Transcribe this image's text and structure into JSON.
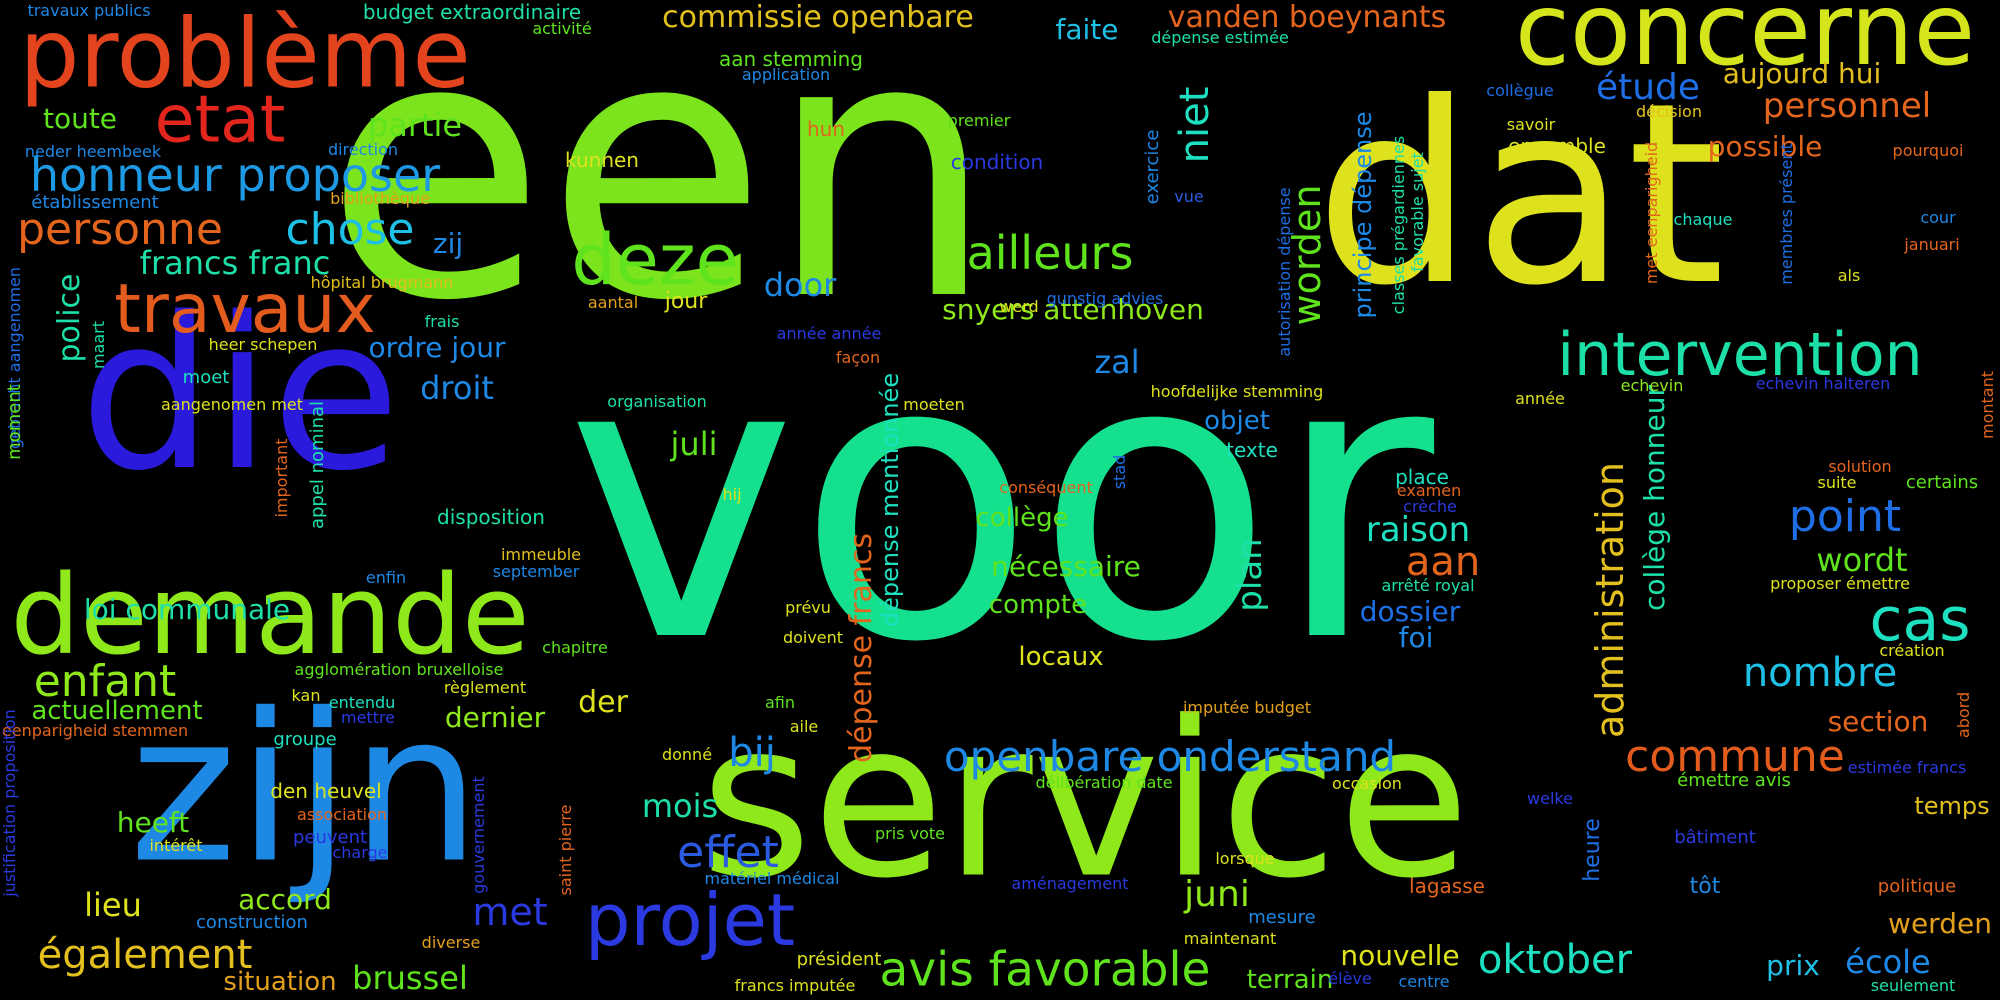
{
  "words": [
    {
      "text": "een",
      "color": "#7be41c"
    },
    {
      "text": "voor",
      "color": "#14e08e"
    },
    {
      "text": "service",
      "color": "#8ee81a"
    },
    {
      "text": "dat",
      "color": "#dde21c"
    },
    {
      "text": "die",
      "color": "#2a1bdc"
    },
    {
      "text": "zijn",
      "color": "#1e88e5"
    },
    {
      "text": "concerne",
      "color": "#d4e51c"
    },
    {
      "text": "demande",
      "color": "#8ee81a"
    },
    {
      "text": "problème",
      "color": "#e3431d"
    },
    {
      "text": "intervention",
      "color": "#1de0a8"
    },
    {
      "text": "travaux",
      "color": "#e35b1d"
    },
    {
      "text": "projet",
      "color": "#2a3ae0"
    },
    {
      "text": "deze",
      "color": "#5ee31c"
    },
    {
      "text": "etat",
      "color": "#e3261d"
    },
    {
      "text": "honneur proposer",
      "color": "#1e9ae5"
    },
    {
      "text": "commune",
      "color": "#e35b1d"
    },
    {
      "text": "avis favorable",
      "color": "#5ee31c"
    },
    {
      "text": "openbare onderstand",
      "color": "#1e88e5"
    },
    {
      "text": "cas",
      "color": "#1de0c0"
    },
    {
      "text": "ailleurs",
      "color": "#5ee31c"
    },
    {
      "text": "personne",
      "color": "#e3651d"
    },
    {
      "text": "chose",
      "color": "#1ec0e5"
    },
    {
      "text": "enfant",
      "color": "#8ee81a"
    },
    {
      "text": "point",
      "color": "#1e6ee5"
    },
    {
      "text": "oktober",
      "color": "#1de0c0"
    },
    {
      "text": "également",
      "color": "#e3c01d"
    },
    {
      "text": "effet",
      "color": "#2a5ae0"
    },
    {
      "text": "commissie openbare",
      "color": "#e3c01d"
    },
    {
      "text": "vanden boeynants",
      "color": "#e3651d"
    },
    {
      "text": "nombre",
      "color": "#1ec0e5"
    },
    {
      "text": "aan",
      "color": "#e3651d"
    },
    {
      "text": "administration",
      "color": "#e3c01d"
    },
    {
      "text": "worden",
      "color": "#5ee31c"
    },
    {
      "text": "niet",
      "color": "#1de0c0"
    },
    {
      "text": "étude",
      "color": "#1e6ee5"
    },
    {
      "text": "personnel",
      "color": "#e3651d"
    },
    {
      "text": "raison",
      "color": "#1de0c0"
    },
    {
      "text": "francs franc",
      "color": "#1de0a8"
    },
    {
      "text": "partie",
      "color": "#5ee31c"
    },
    {
      "text": "section",
      "color": "#e3651d"
    },
    {
      "text": "wordt",
      "color": "#5ee31c"
    },
    {
      "text": "dépense francs",
      "color": "#e3651d"
    },
    {
      "text": "collège honneur",
      "color": "#1de0a8"
    },
    {
      "text": "principe dépense",
      "color": "#1e88e5"
    },
    {
      "text": "dépense mentionnée",
      "color": "#1de0c0"
    },
    {
      "text": "juli",
      "color": "#5ee31c"
    },
    {
      "text": "zal",
      "color": "#1e88e5"
    },
    {
      "text": "door",
      "color": "#1e88e5"
    },
    {
      "text": "brussel",
      "color": "#5ee31c"
    },
    {
      "text": "mois",
      "color": "#1de0a8"
    },
    {
      "text": "bij",
      "color": "#1e88e5"
    },
    {
      "text": "met",
      "color": "#2a3ae0"
    },
    {
      "text": "juni",
      "color": "#8ee81a"
    },
    {
      "text": "plan",
      "color": "#1de0a8"
    },
    {
      "text": "lieu",
      "color": "#dde21c"
    },
    {
      "text": "accord",
      "color": "#8ee81a"
    },
    {
      "text": "heeft",
      "color": "#5ee31c"
    },
    {
      "text": "école",
      "color": "#1e88e5"
    },
    {
      "text": "prix",
      "color": "#1ec0e5"
    },
    {
      "text": "temps",
      "color": "#e3c01d"
    },
    {
      "text": "werden",
      "color": "#e3a01d"
    },
    {
      "text": "droit",
      "color": "#1e88e5"
    },
    {
      "text": "police",
      "color": "#1de0a8"
    },
    {
      "text": "loi communale",
      "color": "#1de0a8"
    },
    {
      "text": "snyers attenhoven",
      "color": "#8ee81a"
    },
    {
      "text": "possible",
      "color": "#e3651d"
    },
    {
      "text": "aujourd hui",
      "color": "#e3c01d"
    },
    {
      "text": "toute",
      "color": "#5ee31c"
    },
    {
      "text": "nouvelle",
      "color": "#dde21c"
    },
    {
      "text": "der",
      "color": "#dde21c"
    },
    {
      "text": "dernier",
      "color": "#8ee81a"
    },
    {
      "text": "actuellement",
      "color": "#5ee31c"
    },
    {
      "text": "situation",
      "color": "#e3a01d"
    },
    {
      "text": "ordre jour",
      "color": "#1e88e5"
    },
    {
      "text": "faite",
      "color": "#1ec0e5"
    },
    {
      "text": "zij",
      "color": "#1e88e5"
    },
    {
      "text": "nécessaire",
      "color": "#5ee31c"
    },
    {
      "text": "collège",
      "color": "#5ee31c"
    },
    {
      "text": "compte",
      "color": "#5ee31c"
    },
    {
      "text": "locaux",
      "color": "#dde21c"
    },
    {
      "text": "dossier",
      "color": "#1e6ee5"
    },
    {
      "text": "foi",
      "color": "#1e88e5"
    },
    {
      "text": "objet",
      "color": "#1e88e5"
    },
    {
      "text": "texte",
      "color": "#1de0c0"
    },
    {
      "text": "terrain",
      "color": "#5ee31c"
    },
    {
      "text": "heure",
      "color": "#1e6ee5"
    },
    {
      "text": "tôt",
      "color": "#1e88e5"
    },
    {
      "text": "lagasse",
      "color": "#e3651d"
    },
    {
      "text": "disposition",
      "color": "#1de0a8"
    },
    {
      "text": "jour",
      "color": "#dde21c"
    },
    {
      "text": "kunnen",
      "color": "#dde21c"
    },
    {
      "text": "aan stemming",
      "color": "#5ee31c"
    },
    {
      "text": "application",
      "color": "#1e88e5"
    },
    {
      "text": "neder heembeek",
      "color": "#1e88e5"
    },
    {
      "text": "direction",
      "color": "#1e88e5"
    },
    {
      "text": "établissement",
      "color": "#1e88e5"
    },
    {
      "text": "bibliothèque",
      "color": "#e3a01d"
    },
    {
      "text": "travaux publics",
      "color": "#1e88e5"
    },
    {
      "text": "budget extraordinaire",
      "color": "#1de0a8"
    },
    {
      "text": "activité",
      "color": "#5ee31c"
    },
    {
      "text": "hun",
      "color": "#e3651d"
    },
    {
      "text": "premier",
      "color": "#5ee31c"
    },
    {
      "text": "condition",
      "color": "#2a3ae0"
    },
    {
      "text": "exercice",
      "color": "#1e88e5"
    },
    {
      "text": "vue",
      "color": "#2a5ae0"
    },
    {
      "text": "autorisation dépense",
      "color": "#1e6ee5"
    },
    {
      "text": "classes prégardiennes",
      "color": "#1de0a8"
    },
    {
      "text": "favorable sujet",
      "color": "#1de0a8"
    },
    {
      "text": "dépense estimée",
      "color": "#1de0a8"
    },
    {
      "text": "collègue",
      "color": "#1e6ee5"
    },
    {
      "text": "savoir",
      "color": "#dde21c"
    },
    {
      "text": "décision",
      "color": "#e3c01d"
    },
    {
      "text": "ensemble",
      "color": "#dde21c"
    },
    {
      "text": "met eenparigheid",
      "color": "#e3651d"
    },
    {
      "text": "pourquoi",
      "color": "#e3651d"
    },
    {
      "text": "chaque",
      "color": "#1de0c0"
    },
    {
      "text": "membres présent",
      "color": "#1e6ee5"
    },
    {
      "text": "cour",
      "color": "#1e88e5"
    },
    {
      "text": "januari",
      "color": "#e3651d"
    },
    {
      "text": "als",
      "color": "#dde21c"
    },
    {
      "text": "hôpital brugmann",
      "color": "#e3c01d"
    },
    {
      "text": "frais",
      "color": "#1de0a8"
    },
    {
      "text": "aantal",
      "color": "#e3a01d"
    },
    {
      "text": "heer schepen",
      "color": "#dde21c"
    },
    {
      "text": "werd",
      "color": "#dde21c"
    },
    {
      "text": "gunstig advies",
      "color": "#1e6ee5"
    },
    {
      "text": "année année",
      "color": "#2a3ae0"
    },
    {
      "text": "façon",
      "color": "#e3651d"
    },
    {
      "text": "moet",
      "color": "#1de0c0"
    },
    {
      "text": "aangenomen met",
      "color": "#dde21c"
    },
    {
      "text": "maart",
      "color": "#1de0a8"
    },
    {
      "text": "gebracht aangenomen",
      "color": "#1e6ee5"
    },
    {
      "text": "organisation",
      "color": "#1de0a8"
    },
    {
      "text": "moeten",
      "color": "#dde21c"
    },
    {
      "text": "hoofdelijke stemming",
      "color": "#dde21c"
    },
    {
      "text": "année",
      "color": "#dde21c"
    },
    {
      "text": "echevin",
      "color": "#8ee81a"
    },
    {
      "text": "echevin halteren",
      "color": "#2a3ae0"
    },
    {
      "text": "montant",
      "color": "#e3651d"
    },
    {
      "text": "solution",
      "color": "#e3651d"
    },
    {
      "text": "suite",
      "color": "#dde21c"
    },
    {
      "text": "certains",
      "color": "#5ee31c"
    },
    {
      "text": "proposer émettre",
      "color": "#dde21c"
    },
    {
      "text": "création",
      "color": "#dde21c"
    },
    {
      "text": "abord",
      "color": "#e3651d"
    },
    {
      "text": "estimée francs",
      "color": "#2a3ae0"
    },
    {
      "text": "émettre avis",
      "color": "#5ee31c"
    },
    {
      "text": "bâtiment",
      "color": "#2a3ae0"
    },
    {
      "text": "politique",
      "color": "#e3651d"
    },
    {
      "text": "seulement",
      "color": "#1de0a8"
    },
    {
      "text": "welke",
      "color": "#2a3ae0"
    },
    {
      "text": "occasion",
      "color": "#dde21c"
    },
    {
      "text": "lorsque",
      "color": "#dde21c"
    },
    {
      "text": "mesure",
      "color": "#1e88e5"
    },
    {
      "text": "maintenant",
      "color": "#dde21c"
    },
    {
      "text": "élève",
      "color": "#2a3ae0"
    },
    {
      "text": "centre",
      "color": "#1e88e5"
    },
    {
      "text": "imputée budget",
      "color": "#e3a01d"
    },
    {
      "text": "délibération date",
      "color": "#5ee31c"
    },
    {
      "text": "pris vote",
      "color": "#5ee31c"
    },
    {
      "text": "aménagement",
      "color": "#2a3ae0"
    },
    {
      "text": "président",
      "color": "#dde21c"
    },
    {
      "text": "francs imputée",
      "color": "#dde21c"
    },
    {
      "text": "matériel médical",
      "color": "#1e88e5"
    },
    {
      "text": "donné",
      "color": "#dde21c"
    },
    {
      "text": "aile",
      "color": "#dde21c"
    },
    {
      "text": "afin",
      "color": "#5ee31c"
    },
    {
      "text": "doivent",
      "color": "#dde21c"
    },
    {
      "text": "prévu",
      "color": "#dde21c"
    },
    {
      "text": "conséquent",
      "color": "#e3651d"
    },
    {
      "text": "stad",
      "color": "#1e6ee5"
    },
    {
      "text": "hij",
      "color": "#dde21c"
    },
    {
      "text": "place",
      "color": "#1de0c0"
    },
    {
      "text": "examen",
      "color": "#e3651d"
    },
    {
      "text": "crèche",
      "color": "#2a3ae0"
    },
    {
      "text": "arrêté royal",
      "color": "#1de0a8"
    },
    {
      "text": "immeuble",
      "color": "#e3c01d"
    },
    {
      "text": "september",
      "color": "#1e88e5"
    },
    {
      "text": "enfin",
      "color": "#1e88e5"
    },
    {
      "text": "appel nominal",
      "color": "#1de0a8"
    },
    {
      "text": "important",
      "color": "#e3651d"
    },
    {
      "text": "moment",
      "color": "#5ee31c"
    },
    {
      "text": "chapitre",
      "color": "#5ee31c"
    },
    {
      "text": "agglomération bruxelloise",
      "color": "#5ee31c"
    },
    {
      "text": "règlement",
      "color": "#dde21c"
    },
    {
      "text": "kan",
      "color": "#dde21c"
    },
    {
      "text": "entendu",
      "color": "#1de0c0"
    },
    {
      "text": "mettre",
      "color": "#2a3ae0"
    },
    {
      "text": "eenparigheid stemmen",
      "color": "#e3651d"
    },
    {
      "text": "groupe",
      "color": "#1de0c0"
    },
    {
      "text": "den heuvel",
      "color": "#dde21c"
    },
    {
      "text": "association",
      "color": "#e3651d"
    },
    {
      "text": "intérêt",
      "color": "#dde21c"
    },
    {
      "text": "peuvent",
      "color": "#2a3ae0"
    },
    {
      "text": "charge",
      "color": "#2a3ae0"
    },
    {
      "text": "construction",
      "color": "#1e88e5"
    },
    {
      "text": "gouvernement",
      "color": "#2a3ae0"
    },
    {
      "text": "saint pierre",
      "color": "#e3651d"
    },
    {
      "text": "diverse",
      "color": "#e3a01d"
    },
    {
      "text": "justification proposition",
      "color": "#2a3ae0"
    }
  ]
}
